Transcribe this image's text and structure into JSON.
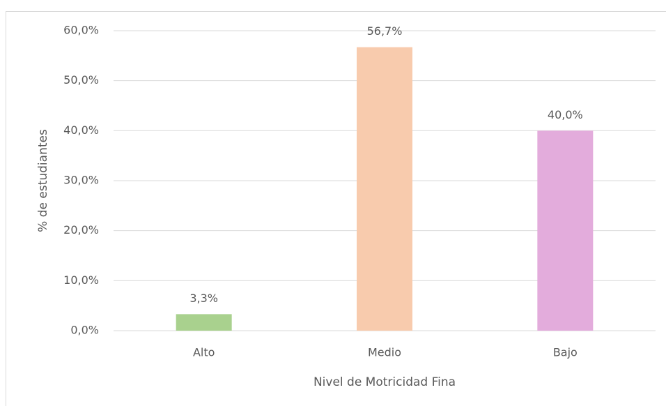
{
  "chart_data": {
    "type": "bar",
    "x_label": "Nivel de Motricidad Fina",
    "y_label": "% de estudiantes",
    "categories": [
      "Alto",
      "Medio",
      "Bajo"
    ],
    "values": [
      3.3,
      56.7,
      40.0
    ],
    "value_labels": [
      "3,3%",
      "56,7%",
      "40,0%"
    ],
    "colors": [
      "#a9d18e",
      "#f8cbad",
      "#e3acdc"
    ],
    "ylim": [
      0,
      60
    ],
    "yticks": [
      {
        "value": 0,
        "label": "0,0%"
      },
      {
        "value": 10,
        "label": "10,0%"
      },
      {
        "value": 20,
        "label": "20,0%"
      },
      {
        "value": 30,
        "label": "30,0%"
      },
      {
        "value": 40,
        "label": "40,0%"
      },
      {
        "value": 50,
        "label": "50,0%"
      },
      {
        "value": 60,
        "label": "60,0%"
      }
    ],
    "grid": true
  }
}
